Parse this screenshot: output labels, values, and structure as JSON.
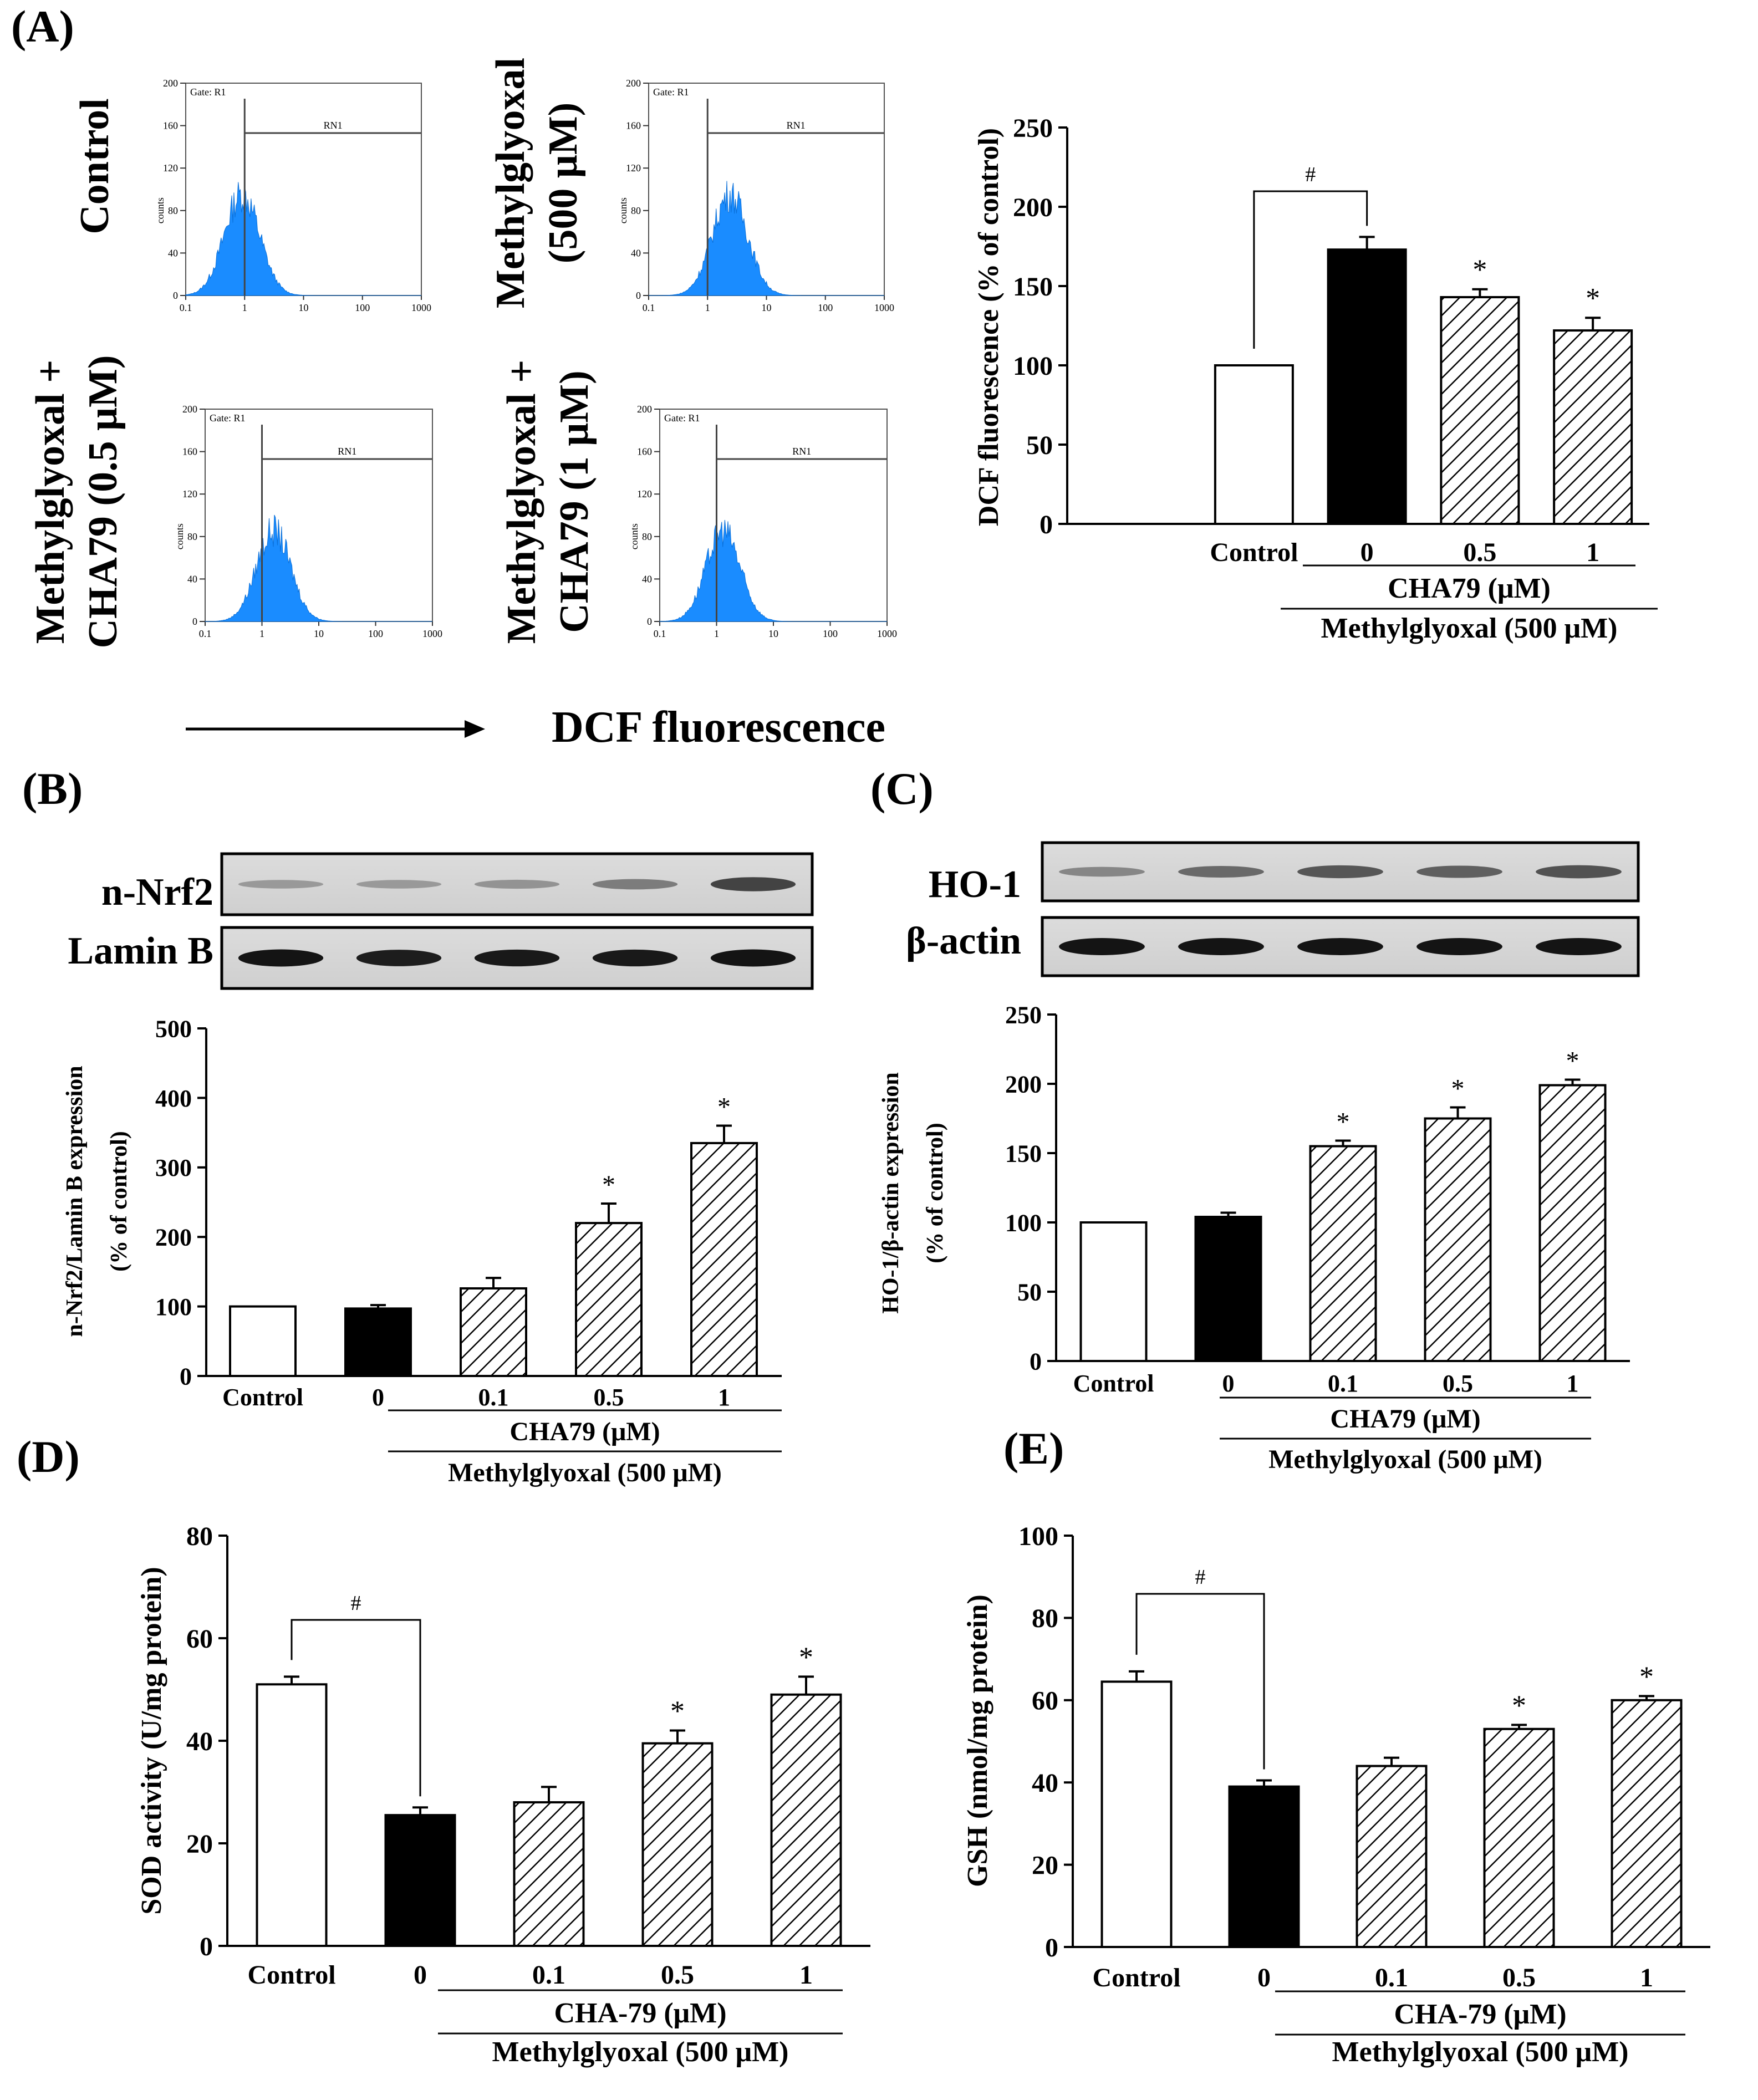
{
  "figure": {
    "panel_labels": [
      "(A)",
      "(B)",
      "(C)",
      "(D)",
      "(E)"
    ],
    "arrow_label": "DCF fluorescence"
  },
  "flow": {
    "gate_label": "Gate: R1",
    "marker_label": "RN1",
    "y_axis_label": "counts",
    "y_ticks": [
      "200",
      "160",
      "120",
      "80",
      "40",
      "0"
    ],
    "x_ticks": [
      "0.1",
      "1",
      "10",
      "100",
      "1000"
    ],
    "conditions": [
      {
        "line1": "Control",
        "line2": ""
      },
      {
        "line1": "Methylglyoxal",
        "line2": "(500 μM)"
      },
      {
        "line1": "Methylglyoxal +",
        "line2": "CHA79 (0.5 μM)"
      },
      {
        "line1": "Methylglyoxal +",
        "line2": "CHA79 (1 μM)"
      }
    ],
    "peaks": [
      {
        "center": 0.9,
        "height": 100
      },
      {
        "center": 2.4,
        "height": 100
      },
      {
        "center": 1.6,
        "height": 90
      },
      {
        "center": 1.3,
        "height": 90
      }
    ]
  },
  "blots": {
    "B": {
      "rows": [
        {
          "label": "n-Nrf2",
          "intensities": [
            0.25,
            0.25,
            0.28,
            0.4,
            0.7
          ]
        },
        {
          "label": "Lamin B",
          "intensities": [
            0.95,
            0.9,
            0.92,
            0.92,
            0.95
          ]
        }
      ]
    },
    "C": {
      "rows": [
        {
          "label": "HO-1",
          "intensities": [
            0.35,
            0.5,
            0.6,
            0.55,
            0.62
          ]
        },
        {
          "label": "β-actin",
          "intensities": [
            0.95,
            0.95,
            0.95,
            0.95,
            0.95
          ]
        }
      ]
    }
  },
  "chart_data": [
    {
      "panel": "A",
      "type": "bar",
      "title": "",
      "ylabel": "DCF fluorescence (% of control)",
      "xlabel": "",
      "ylim": [
        0,
        250
      ],
      "yticks": [
        0,
        50,
        100,
        150,
        200,
        250
      ],
      "categories": [
        "Control",
        "0",
        "0.5",
        "1"
      ],
      "values": [
        100,
        173,
        143,
        122
      ],
      "errors": [
        0,
        8,
        5,
        8
      ],
      "fills": [
        "white",
        "black",
        "hatch",
        "hatch"
      ],
      "signif": [
        "",
        "",
        "*",
        "*"
      ],
      "bracket": {
        "from": 0,
        "to": 1,
        "label": "#"
      },
      "group_label": "CHA79 (μM)",
      "treatment_label": "Methylglyoxal (500 μM)"
    },
    {
      "panel": "B",
      "type": "bar",
      "title": "",
      "ylabel": "n-Nrf2/Lamin B expression",
      "ylabel2": "(% of control)",
      "xlabel": "",
      "ylim": [
        0,
        500
      ],
      "yticks": [
        0,
        100,
        200,
        300,
        400,
        500
      ],
      "categories": [
        "Control",
        "0",
        "0.1",
        "0.5",
        "1"
      ],
      "values": [
        100,
        97,
        126,
        220,
        335
      ],
      "errors": [
        0,
        5,
        15,
        28,
        25
      ],
      "fills": [
        "white",
        "black",
        "hatch",
        "hatch",
        "hatch"
      ],
      "signif": [
        "",
        "",
        "",
        "*",
        "*"
      ],
      "group_label": "CHA79 (μM)",
      "treatment_label": "Methylglyoxal (500 μM)"
    },
    {
      "panel": "C",
      "type": "bar",
      "title": "",
      "ylabel": "HO-1/β-actin expression",
      "ylabel2": "(% of control)",
      "xlabel": "",
      "ylim": [
        0,
        250
      ],
      "yticks": [
        0,
        50,
        100,
        150,
        200,
        250
      ],
      "categories": [
        "Control",
        "0",
        "0.1",
        "0.5",
        "1"
      ],
      "values": [
        100,
        104,
        155,
        175,
        199
      ],
      "errors": [
        0,
        3,
        4,
        8,
        4
      ],
      "fills": [
        "white",
        "black",
        "hatch",
        "hatch",
        "hatch"
      ],
      "signif": [
        "",
        "",
        "*",
        "*",
        "*"
      ],
      "group_label": "CHA79 (μM)",
      "treatment_label": "Methylglyoxal (500 μM)"
    },
    {
      "panel": "D",
      "type": "bar",
      "title": "",
      "ylabel": "SOD activity (U/mg protein)",
      "xlabel": "",
      "ylim": [
        0,
        80
      ],
      "yticks": [
        0,
        20,
        40,
        60,
        80
      ],
      "categories": [
        "Control",
        "0",
        "0.1",
        "0.5",
        "1"
      ],
      "values": [
        51,
        25.5,
        28,
        39.5,
        49
      ],
      "errors": [
        1.5,
        1.5,
        3,
        2.5,
        3.5
      ],
      "fills": [
        "white",
        "black",
        "hatch",
        "hatch",
        "hatch"
      ],
      "signif": [
        "",
        "",
        "",
        "*",
        "*"
      ],
      "bracket": {
        "from": 0,
        "to": 1,
        "label": "#"
      },
      "group_label": "CHA-79 (μM)",
      "treatment_label": "Methylglyoxal (500 μM)"
    },
    {
      "panel": "E",
      "type": "bar",
      "title": "",
      "ylabel": "GSH (nmol/mg protein)",
      "xlabel": "",
      "ylim": [
        0,
        100
      ],
      "yticks": [
        0,
        20,
        40,
        60,
        80,
        100
      ],
      "categories": [
        "Control",
        "0",
        "0.1",
        "0.5",
        "1"
      ],
      "values": [
        64.5,
        39,
        44,
        53,
        60
      ],
      "errors": [
        2.5,
        1.5,
        2,
        1,
        1
      ],
      "fills": [
        "white",
        "black",
        "hatch",
        "hatch",
        "hatch"
      ],
      "signif": [
        "",
        "",
        "",
        "*",
        "*"
      ],
      "bracket": {
        "from": 0,
        "to": 1,
        "label": "#"
      },
      "group_label": "CHA-79 (μM)",
      "treatment_label": "Methylglyoxal (500 μM)"
    }
  ]
}
